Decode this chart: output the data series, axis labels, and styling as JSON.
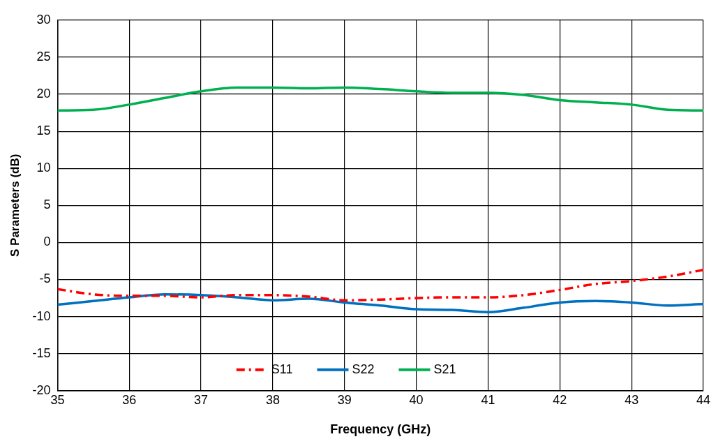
{
  "chart_data": {
    "type": "line",
    "xlabel": "Frequency (GHz)",
    "ylabel": "S Parameters (dB)",
    "x": [
      35,
      35.5,
      36,
      36.5,
      37,
      37.5,
      38,
      38.5,
      39,
      39.5,
      40,
      40.5,
      41,
      41.5,
      42,
      42.5,
      43,
      43.5,
      44
    ],
    "series": [
      {
        "name": "S11",
        "color": "#ff0000",
        "line_style": "dashed",
        "values": [
          -6.3,
          -7.0,
          -7.2,
          -7.2,
          -7.4,
          -7.1,
          -7.1,
          -7.3,
          -7.8,
          -7.7,
          -7.5,
          -7.4,
          -7.4,
          -7.1,
          -6.4,
          -5.6,
          -5.2,
          -4.6,
          -3.7
        ]
      },
      {
        "name": "S22",
        "color": "#0070c0",
        "values": [
          -8.4,
          -7.9,
          -7.4,
          -7.0,
          -7.1,
          -7.4,
          -7.8,
          -7.6,
          -8.1,
          -8.5,
          -9.0,
          -9.1,
          -9.4,
          -8.8,
          -8.1,
          -7.9,
          -8.1,
          -8.5,
          -8.3
        ]
      },
      {
        "name": "S21",
        "color": "#00b050",
        "values": [
          17.8,
          17.9,
          18.6,
          19.5,
          20.4,
          20.9,
          20.9,
          20.8,
          20.9,
          20.7,
          20.4,
          20.2,
          20.2,
          19.9,
          19.2,
          18.9,
          18.6,
          17.9,
          17.8
        ]
      }
    ],
    "xlim": [
      35,
      44
    ],
    "xticks": [
      35,
      36,
      37,
      38,
      39,
      40,
      41,
      42,
      43,
      44
    ],
    "ylim": [
      -20,
      30
    ],
    "yticks": [
      -20,
      -15,
      -10,
      -5,
      0,
      5,
      10,
      15,
      20,
      25,
      30
    ],
    "grid": true,
    "legend": "bottom",
    "marker": "none",
    "line_style": "solid"
  }
}
